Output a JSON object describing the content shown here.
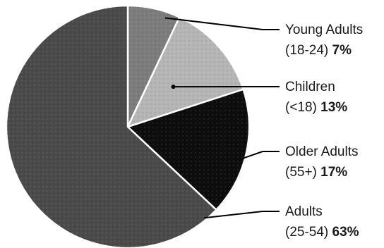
{
  "chart_data": {
    "type": "pie",
    "slices": [
      {
        "name": "Young Adults",
        "sub": "(18-24)",
        "value": 7,
        "pct_label": "7%",
        "color": "#7c7c7c"
      },
      {
        "name": "Children",
        "sub": "(<18)",
        "value": 13,
        "pct_label": "13%",
        "color": "#b5b5b5"
      },
      {
        "name": "Older Adults",
        "sub": "(55+)",
        "value": 17,
        "pct_label": "17%",
        "color": "#0d0d0d"
      },
      {
        "name": "Adults",
        "sub": "(25-54)",
        "value": 63,
        "pct_label": "63%",
        "color": "#4a4a4a"
      }
    ],
    "start": "12 o'clock",
    "direction": "clockwise",
    "legend": "none",
    "labels": "right, with leader lines"
  }
}
